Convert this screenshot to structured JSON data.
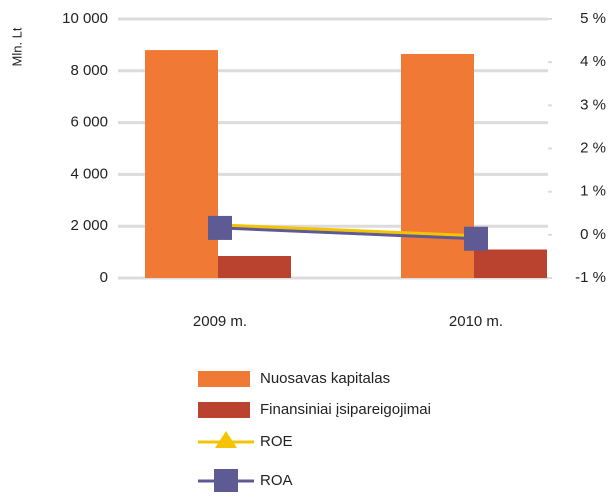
{
  "chart_data": {
    "type": "bar",
    "y_label": "Mln. Lt",
    "categories": [
      "2009 m.",
      "2010 m."
    ],
    "series": [
      {
        "name": "Nuosavas kapitalas",
        "color": "#f07a35",
        "values": [
          8800,
          8650
        ]
      },
      {
        "name": "Finansiniai įsipareigojimai",
        "color": "#b9432e",
        "values": [
          850,
          1100
        ]
      },
      {
        "name": "ROE",
        "color": "#f5c400",
        "axis": "y2",
        "type": "line",
        "values": [
          0.23,
          -0.02
        ]
      },
      {
        "name": "ROA",
        "color": "#5d5a94",
        "axis": "y2",
        "type": "line",
        "values": [
          0.16,
          -0.09
        ]
      }
    ],
    "ylim": [
      0,
      10000
    ],
    "yticks": [
      0,
      {
        "value": 2000,
        "label": "2 000"
      },
      {
        "value": 4000,
        "label": "4 000"
      },
      {
        "value": 6000,
        "label": "6 000"
      },
      {
        "value": 8000,
        "label": "8 000"
      },
      {
        "value": 10000,
        "label": "10 000"
      }
    ],
    "y2lim": [
      -1,
      5
    ],
    "y2ticks": [
      {
        "value": -1,
        "label": "-1 %"
      },
      {
        "value": 0,
        "label": "0 %"
      },
      {
        "value": 1,
        "label": "1 %"
      },
      {
        "value": 2,
        "label": "2 %"
      },
      {
        "value": 3,
        "label": "3 %"
      },
      {
        "value": 4,
        "label": "4 %"
      },
      {
        "value": 5,
        "label": "5 %"
      }
    ],
    "grid": true
  }
}
